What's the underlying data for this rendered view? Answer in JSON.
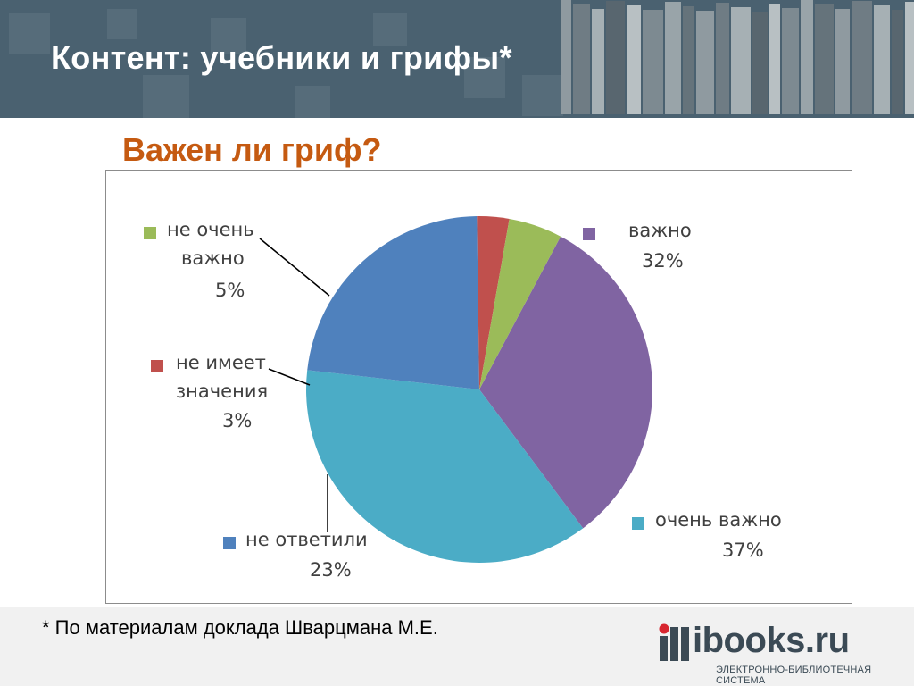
{
  "header": {
    "title": "Контент: учебники и грифы*"
  },
  "chart_data": {
    "type": "pie",
    "title": "Важен ли гриф?",
    "slices": [
      {
        "label": "важно",
        "label_lines": [
          "важно"
        ],
        "value": 32,
        "value_label": "32%",
        "color": "#8064a2"
      },
      {
        "label": "очень важно",
        "label_lines": [
          "очень важно"
        ],
        "value": 37,
        "value_label": "37%",
        "color": "#4bacc6"
      },
      {
        "label": "не ответили",
        "label_lines": [
          "не ответили"
        ],
        "value": 23,
        "value_label": "23%",
        "color": "#4f81bd"
      },
      {
        "label": "не имеет значения",
        "label_lines": [
          "не имеет",
          "значения"
        ],
        "value": 3,
        "value_label": "3%",
        "color": "#c0504d"
      },
      {
        "label": "не очень важно",
        "label_lines": [
          "не очень",
          "важно"
        ],
        "value": 5,
        "value_label": "5%",
        "color": "#9bbb59"
      }
    ]
  },
  "footer": {
    "note": "* По материалам доклада Шварцмана М.Е.",
    "logo_text": "ibooks.ru",
    "logo_subtitle": "ЭЛЕКТРОННО-БИБЛИОТЕЧНАЯ СИСТЕМА"
  }
}
